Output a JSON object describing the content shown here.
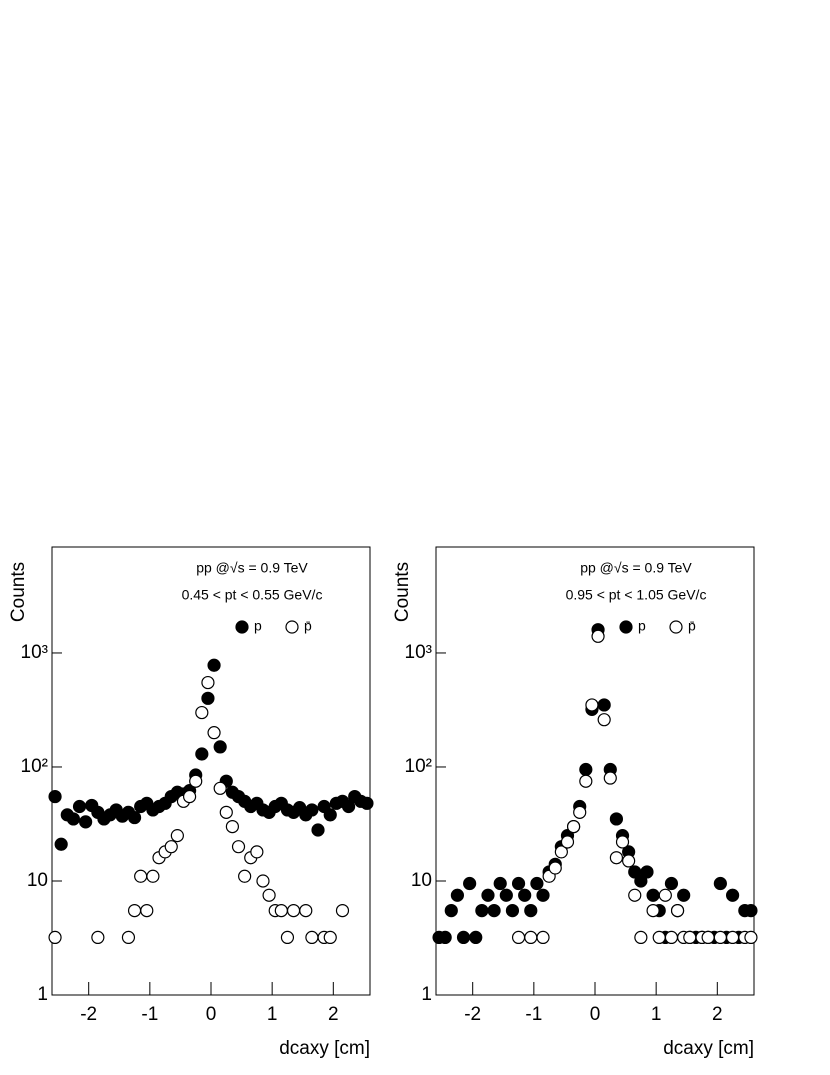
{
  "chart_data": [
    {
      "type": "scatter",
      "log_y": true,
      "ylabel": "Counts",
      "xlabel": "dcaxy [cm]",
      "annotations": [
        "pp @√s = 0.9 TeV",
        "0.45 < pt < 0.55 GeV/c"
      ],
      "xlim": [
        -2.6,
        2.6
      ],
      "ylim": [
        1,
        8500
      ],
      "xticks": [
        -2,
        -1,
        0,
        1,
        2
      ],
      "yticks": [
        1,
        10,
        {
          "value": 100,
          "label": "10²"
        },
        {
          "value": 1000,
          "label": "10³"
        }
      ],
      "x": [
        -2.55,
        -2.45,
        -2.35,
        -2.25,
        -2.15,
        -2.05,
        -1.95,
        -1.85,
        -1.75,
        -1.65,
        -1.55,
        -1.45,
        -1.35,
        -1.25,
        -1.15,
        -1.05,
        -0.95,
        -0.85,
        -0.75,
        -0.65,
        -0.55,
        -0.45,
        -0.35,
        -0.25,
        -0.15,
        -0.05,
        0.05,
        0.15,
        0.25,
        0.35,
        0.45,
        0.55,
        0.65,
        0.75,
        0.85,
        0.95,
        1.05,
        1.15,
        1.25,
        1.35,
        1.45,
        1.55,
        1.65,
        1.75,
        1.85,
        1.95,
        2.05,
        2.15,
        2.25,
        2.35,
        2.45,
        2.55
      ],
      "series": [
        {
          "name": "p",
          "color": "#000000",
          "filled": true,
          "values": [
            55,
            21,
            38,
            35,
            45,
            33,
            46,
            40,
            35,
            38,
            42,
            37,
            40,
            36,
            45,
            48,
            42,
            45,
            48,
            55,
            60,
            58,
            62,
            85,
            130,
            400,
            780,
            150,
            75,
            60,
            55,
            50,
            45,
            48,
            42,
            40,
            45,
            48,
            42,
            40,
            44,
            38,
            42,
            28,
            45,
            38,
            48,
            50,
            45,
            55,
            50,
            48
          ]
        },
        {
          "name": "p̄",
          "color": "#000000",
          "filled": false,
          "values": [
            3.2,
            null,
            null,
            null,
            null,
            null,
            null,
            3.2,
            null,
            null,
            null,
            null,
            3.2,
            5.5,
            11,
            5.5,
            11,
            16,
            18,
            20,
            25,
            50,
            55,
            75,
            300,
            550,
            200,
            65,
            40,
            30,
            20,
            11,
            16,
            18,
            10,
            7.5,
            5.5,
            5.5,
            3.2,
            5.5,
            null,
            5.5,
            3.2,
            null,
            3.2,
            3.2,
            null,
            5.5,
            null,
            null,
            null,
            null
          ]
        }
      ]
    },
    {
      "type": "scatter",
      "log_y": true,
      "ylabel": "Counts",
      "xlabel": "dcaxy [cm]",
      "annotations": [
        "pp @√s = 0.9 TeV",
        "0.95 < pt < 1.05 GeV/c"
      ],
      "xlim": [
        -2.6,
        2.6
      ],
      "ylim": [
        1,
        8500
      ],
      "xticks": [
        -2,
        -1,
        0,
        1,
        2
      ],
      "yticks": [
        1,
        10,
        {
          "value": 100,
          "label": "10²"
        },
        {
          "value": 1000,
          "label": "10³"
        }
      ],
      "x": [
        -2.55,
        -2.45,
        -2.35,
        -2.25,
        -2.15,
        -2.05,
        -1.95,
        -1.85,
        -1.75,
        -1.65,
        -1.55,
        -1.45,
        -1.35,
        -1.25,
        -1.15,
        -1.05,
        -0.95,
        -0.85,
        -0.75,
        -0.65,
        -0.55,
        -0.45,
        -0.35,
        -0.25,
        -0.15,
        -0.05,
        0.05,
        0.15,
        0.25,
        0.35,
        0.45,
        0.55,
        0.65,
        0.75,
        0.85,
        0.95,
        1.05,
        1.15,
        1.25,
        1.35,
        1.45,
        1.55,
        1.65,
        1.75,
        1.85,
        1.95,
        2.05,
        2.15,
        2.25,
        2.35,
        2.45,
        2.55
      ],
      "series": [
        {
          "name": "p",
          "color": "#000000",
          "filled": true,
          "values": [
            3.2,
            3.2,
            5.5,
            7.5,
            3.2,
            9.5,
            3.2,
            5.5,
            7.5,
            5.5,
            9.5,
            7.5,
            5.5,
            9.5,
            7.5,
            5.5,
            9.5,
            7.5,
            12,
            14,
            20,
            25,
            30,
            45,
            95,
            320,
            1600,
            350,
            95,
            35,
            25,
            18,
            12,
            10,
            12,
            7.5,
            5.5,
            3.2,
            9.5,
            5.5,
            7.5,
            3.2,
            3.2,
            3.2,
            3.2,
            3.2,
            9.5,
            3.2,
            7.5,
            3.2,
            5.5,
            5.5
          ]
        },
        {
          "name": "p̄",
          "color": "#000000",
          "filled": false,
          "values": [
            null,
            null,
            null,
            null,
            null,
            null,
            null,
            null,
            null,
            null,
            null,
            null,
            null,
            3.2,
            null,
            3.2,
            null,
            3.2,
            11,
            13,
            18,
            22,
            30,
            40,
            75,
            350,
            1400,
            260,
            80,
            16,
            22,
            15,
            7.5,
            3.2,
            null,
            5.5,
            3.2,
            7.5,
            3.2,
            5.5,
            3.2,
            3.2,
            null,
            3.2,
            3.2,
            null,
            3.2,
            null,
            3.2,
            null,
            3.2,
            3.2
          ]
        }
      ]
    }
  ]
}
